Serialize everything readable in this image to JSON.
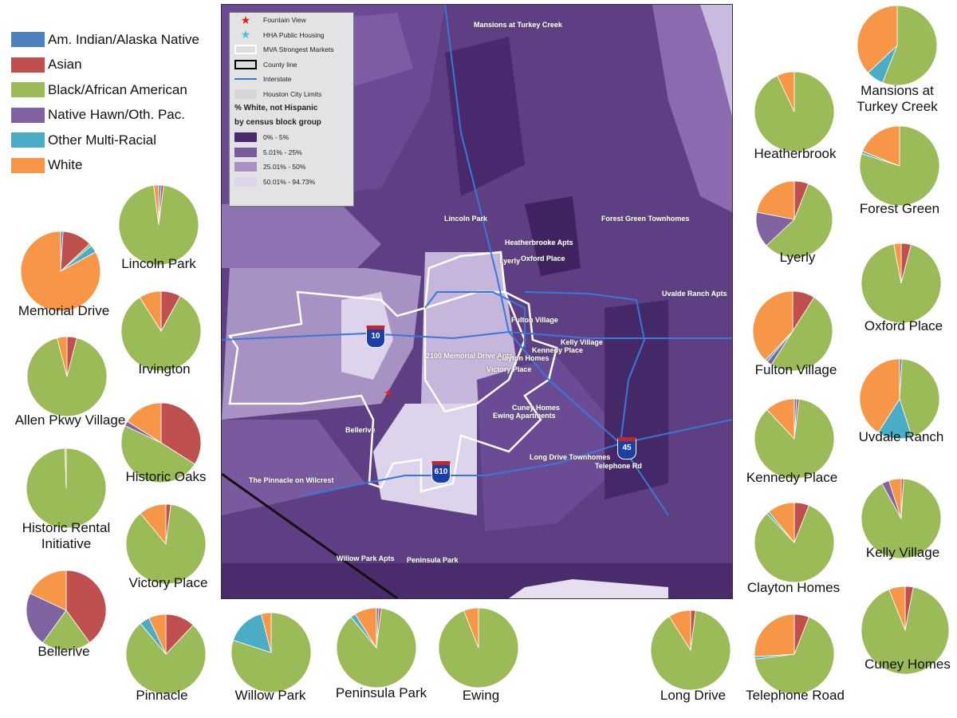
{
  "legend": {
    "items": [
      {
        "label": "Am. Indian/Alaska Native",
        "color": "#4f81bd"
      },
      {
        "label": "Asian",
        "color": "#c0504d"
      },
      {
        "label": "Black/African American",
        "color": "#9bbb59"
      },
      {
        "label": "Native Hawn/Oth. Pac.",
        "color": "#8064a2"
      },
      {
        "label": "Other Multi-Racial",
        "color": "#4bacc6"
      },
      {
        "label": "White",
        "color": "#f79646"
      }
    ]
  },
  "map": {
    "legend": {
      "fountain_view": "Fountain View",
      "hha_public_housing": "HHA Public Housing",
      "mva_strongest_markets": "MVA Strongest Markets",
      "county_line": "County line",
      "interstate": "Interstate",
      "houston_city_limits": "Houston City Limits",
      "title_line1": "% White, not Hispanic",
      "title_line2": "by census block group",
      "classes": [
        {
          "label": "0% - 5%",
          "color": "#4b2a6e"
        },
        {
          "label": "5.01% - 25%",
          "color": "#7a5a9e"
        },
        {
          "label": "25.01% - 50%",
          "color": "#a892c4"
        },
        {
          "label": "50.01% - 94.73%",
          "color": "#ddd3ea"
        }
      ]
    },
    "places": [
      "Mansions at Turkey Creek",
      "Lincoln Park",
      "Forest Green Townhomes",
      "Heatherbrooke Apts",
      "Lyerly",
      "Oxford Place",
      "Uvalde Ranch Apts",
      "Fulton Village",
      "Kelly Village",
      "Kennedy Place",
      "2100 Memorial Drive Apts",
      "Clayton Homes",
      "Victory Place",
      "Cuney Homes",
      "Ewing Apartments",
      "Bellerive",
      "Long Drive Townhomes",
      "Telephone Rd",
      "The Pinnacle on Wilcrest",
      "Willow Park Apts",
      "Peninsula Park"
    ],
    "shields": [
      "10",
      "610",
      "45"
    ]
  },
  "chart_data": {
    "type": "pie",
    "categories": [
      "Am. Indian/Alaska Native",
      "Asian",
      "Black/African American",
      "Native Hawn/Oth. Pac.",
      "Other Multi-Racial",
      "White"
    ],
    "units": "percent of residents (estimated)",
    "pies": [
      {
        "name": "Lincoln Park",
        "values": [
          1,
          1,
          96,
          0,
          0,
          2
        ]
      },
      {
        "name": "Memorial Drive",
        "values": [
          1,
          12,
          1,
          0,
          3,
          83
        ]
      },
      {
        "name": "Irvington",
        "values": [
          0,
          8,
          83,
          0,
          0,
          9
        ]
      },
      {
        "name": "Allen Pkwy Village",
        "values": [
          0,
          4,
          92,
          0,
          0,
          4
        ]
      },
      {
        "name": "Historic Oaks",
        "values": [
          0,
          34,
          48,
          2,
          0,
          16
        ]
      },
      {
        "name": "Historic Rental Initiative",
        "values": [
          0,
          0,
          99.5,
          0,
          0,
          0.5
        ]
      },
      {
        "name": "Victory Place",
        "values": [
          0,
          2,
          87,
          0,
          0,
          11
        ]
      },
      {
        "name": "Bellerive",
        "values": [
          0,
          40,
          20,
          22,
          0,
          18
        ]
      },
      {
        "name": "Pinnacle",
        "values": [
          0,
          12,
          77,
          0,
          4,
          7
        ]
      },
      {
        "name": "Willow Park",
        "values": [
          0,
          0,
          80,
          0,
          16,
          4
        ]
      },
      {
        "name": "Peninsula Park",
        "values": [
          1,
          1,
          87,
          0,
          2,
          9
        ]
      },
      {
        "name": "Ewing",
        "values": [
          0,
          0,
          94,
          0,
          0,
          6
        ]
      },
      {
        "name": "Long Drive",
        "values": [
          0,
          2,
          89,
          0,
          0,
          9
        ]
      },
      {
        "name": "Telephone Road",
        "values": [
          0,
          6,
          67,
          0,
          1,
          26
        ]
      },
      {
        "name": "Heatherbrook",
        "values": [
          0,
          0,
          93,
          0,
          0,
          7
        ]
      },
      {
        "name": "Mansions at Turkey Creek",
        "values": [
          0,
          0,
          56,
          0,
          7,
          37
        ]
      },
      {
        "name": "Forest Green",
        "values": [
          0,
          0,
          80,
          0,
          1,
          19
        ]
      },
      {
        "name": "Lyerly",
        "values": [
          0,
          6,
          57,
          15,
          0,
          22
        ]
      },
      {
        "name": "Oxford Place",
        "values": [
          0,
          4,
          93,
          0,
          0,
          3
        ]
      },
      {
        "name": "Fulton Village",
        "values": [
          0,
          9,
          50,
          2,
          1,
          38
        ]
      },
      {
        "name": "Uvdale Ranch",
        "values": [
          1,
          0,
          44,
          0,
          14,
          41
        ]
      },
      {
        "name": "Kennedy Place",
        "values": [
          1,
          1,
          86,
          0,
          0,
          12
        ]
      },
      {
        "name": "Kelly Village",
        "values": [
          0,
          1,
          91,
          3,
          0,
          5
        ]
      },
      {
        "name": "Clayton Homes",
        "values": [
          0,
          6,
          82,
          0,
          1,
          11
        ]
      },
      {
        "name": "Cuney Homes",
        "values": [
          0,
          3,
          91,
          0,
          0,
          6
        ]
      }
    ]
  }
}
